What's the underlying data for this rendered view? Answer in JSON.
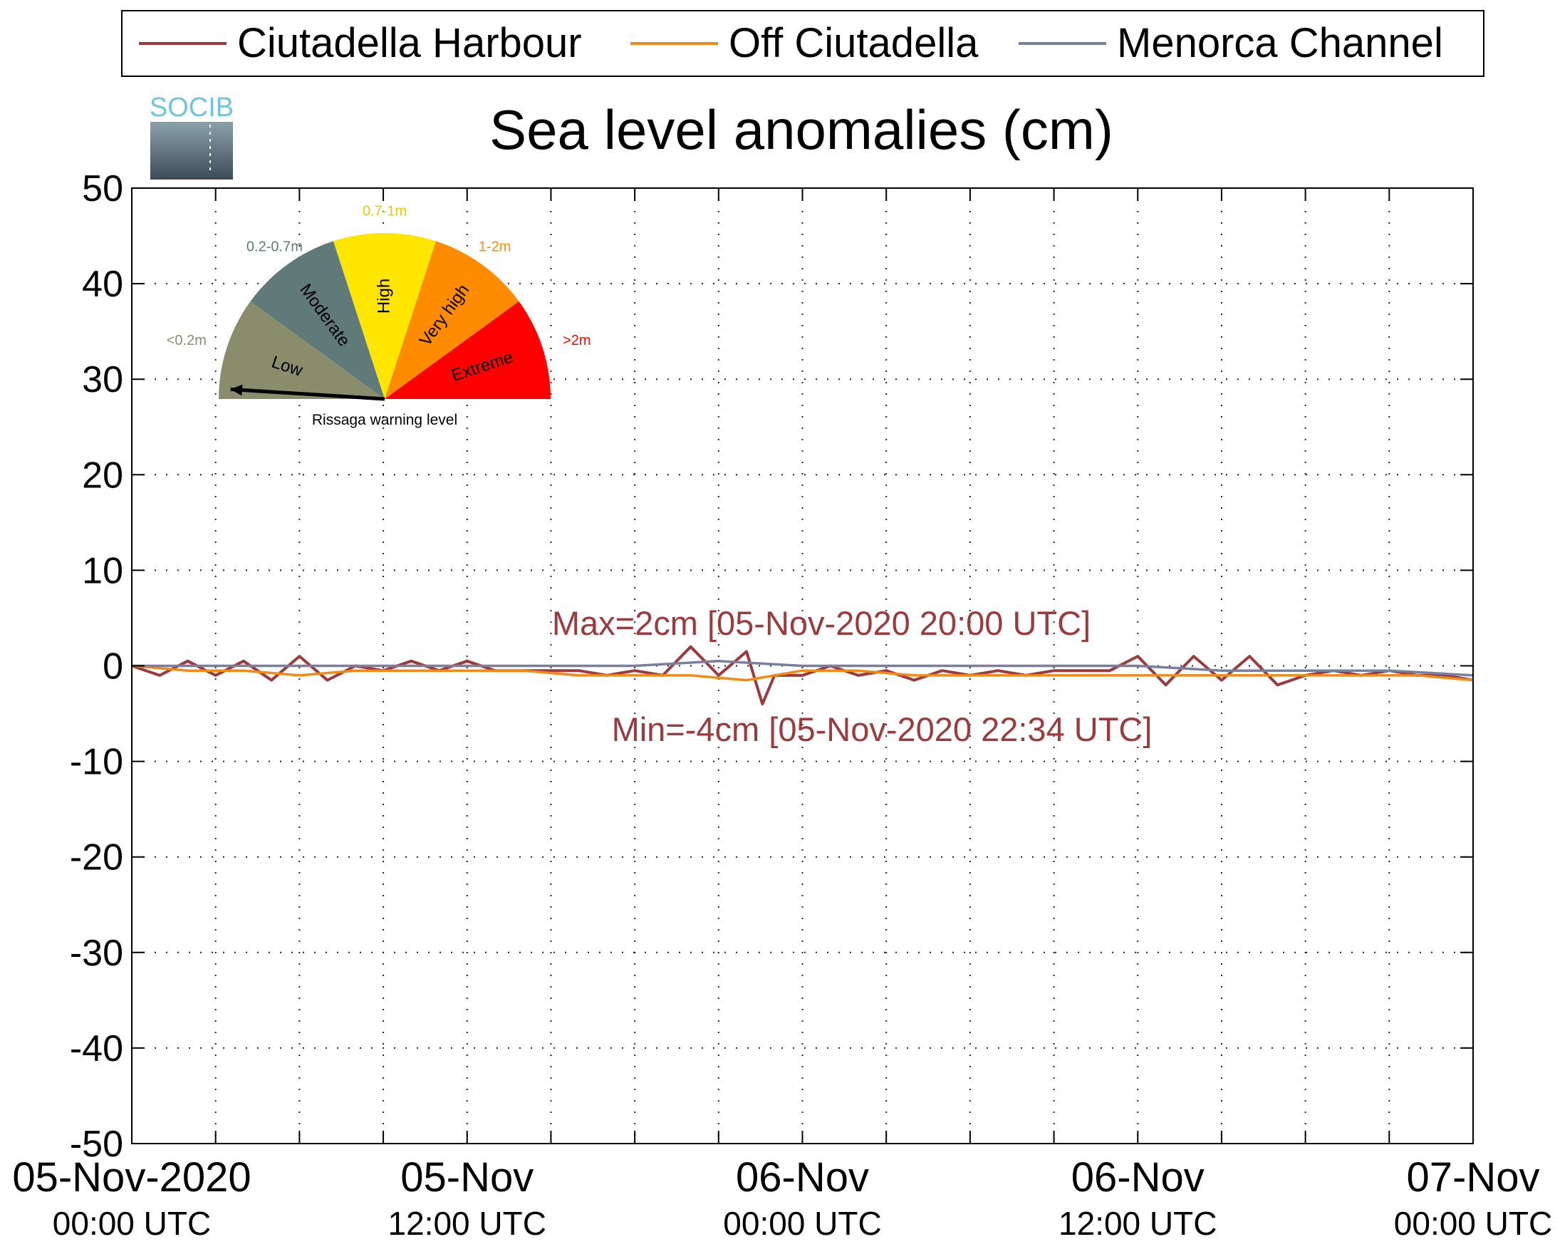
{
  "chart_data": {
    "type": "line",
    "title": "Sea level anomalies (cm)",
    "logo_text": "SOCIB",
    "xlabel": "",
    "ylabel": "",
    "grid": true,
    "legend_placement": "top",
    "ylim": [
      -50,
      50
    ],
    "yticks": [
      50,
      40,
      30,
      20,
      10,
      0,
      -10,
      -20,
      -30,
      -40,
      -50
    ],
    "xlim": [
      "2020-11-05 00:00",
      "2020-11-07 00:00"
    ],
    "xtick_labels": [
      {
        "date": "2020-11-05 00:00",
        "line1": "05-Nov-2020",
        "line2": "00:00 UTC"
      },
      {
        "date": "2020-11-05 12:00",
        "line1": "05-Nov",
        "line2": "12:00 UTC"
      },
      {
        "date": "2020-11-06 00:00",
        "line1": "06-Nov",
        "line2": "00:00 UTC"
      },
      {
        "date": "2020-11-06 12:00",
        "line1": "06-Nov",
        "line2": "12:00 UTC"
      },
      {
        "date": "2020-11-07 00:00",
        "line1": "07-Nov",
        "line2": "00:00 UTC"
      }
    ],
    "minor_xtick_hours": 3,
    "series": [
      {
        "name": "Ciutadella Harbour",
        "color": "#9c3a3e",
        "x": [
          "2020-11-05 00:00",
          "2020-11-05 01:00",
          "2020-11-05 02:00",
          "2020-11-05 03:00",
          "2020-11-05 04:00",
          "2020-11-05 05:00",
          "2020-11-05 06:00",
          "2020-11-05 07:00",
          "2020-11-05 08:00",
          "2020-11-05 09:00",
          "2020-11-05 10:00",
          "2020-11-05 11:00",
          "2020-11-05 12:00",
          "2020-11-05 13:00",
          "2020-11-05 14:00",
          "2020-11-05 15:00",
          "2020-11-05 16:00",
          "2020-11-05 17:00",
          "2020-11-05 18:00",
          "2020-11-05 19:00",
          "2020-11-05 20:00",
          "2020-11-05 21:00",
          "2020-11-05 22:00",
          "2020-11-05 22:34",
          "2020-11-05 23:00",
          "2020-11-06 00:00",
          "2020-11-06 01:00",
          "2020-11-06 02:00",
          "2020-11-06 03:00",
          "2020-11-06 04:00",
          "2020-11-06 05:00",
          "2020-11-06 06:00",
          "2020-11-06 07:00",
          "2020-11-06 08:00",
          "2020-11-06 09:00",
          "2020-11-06 10:00",
          "2020-11-06 11:00",
          "2020-11-06 12:00",
          "2020-11-06 13:00",
          "2020-11-06 14:00",
          "2020-11-06 15:00",
          "2020-11-06 16:00",
          "2020-11-06 17:00",
          "2020-11-06 18:00",
          "2020-11-06 19:00",
          "2020-11-06 20:00",
          "2020-11-06 21:00",
          "2020-11-06 22:00",
          "2020-11-06 23:00",
          "2020-11-07 00:00"
        ],
        "values": [
          0,
          -1,
          0.5,
          -1,
          0.5,
          -1.5,
          1,
          -1.5,
          0,
          -0.5,
          0.5,
          -0.5,
          0.5,
          -0.5,
          -0.5,
          -0.5,
          -0.5,
          -1,
          -0.5,
          -1,
          2,
          -1,
          1.5,
          -4,
          -1,
          -1,
          0,
          -1,
          -0.5,
          -1.5,
          -0.5,
          -1,
          -0.5,
          -1,
          -0.5,
          -0.5,
          -0.5,
          1,
          -2,
          1,
          -1.5,
          1,
          -2,
          -1,
          -0.5,
          -1,
          -0.5,
          -1,
          -1,
          -1.5
        ]
      },
      {
        "name": "Off Ciutadella",
        "color": "#f08c16",
        "x": [
          "2020-11-05 00:00",
          "2020-11-05 02:00",
          "2020-11-05 04:00",
          "2020-11-05 06:00",
          "2020-11-05 08:00",
          "2020-11-05 10:00",
          "2020-11-05 12:00",
          "2020-11-05 14:00",
          "2020-11-05 16:00",
          "2020-11-05 18:00",
          "2020-11-05 20:00",
          "2020-11-05 22:00",
          "2020-11-06 00:00",
          "2020-11-06 02:00",
          "2020-11-06 04:00",
          "2020-11-06 06:00",
          "2020-11-06 08:00",
          "2020-11-06 10:00",
          "2020-11-06 12:00",
          "2020-11-06 14:00",
          "2020-11-06 16:00",
          "2020-11-06 18:00",
          "2020-11-06 20:00",
          "2020-11-06 22:00",
          "2020-11-07 00:00"
        ],
        "values": [
          0,
          -0.5,
          -0.5,
          -1,
          -0.5,
          -0.5,
          -0.5,
          -0.5,
          -1,
          -1,
          -1,
          -1.5,
          -0.5,
          -0.5,
          -1,
          -1,
          -1,
          -1,
          -1,
          -1,
          -1,
          -1,
          -1,
          -1,
          -1.5
        ]
      },
      {
        "name": "Menorca Channel",
        "color": "#7a7f9e",
        "x": [
          "2020-11-05 00:00",
          "2020-11-05 03:00",
          "2020-11-05 06:00",
          "2020-11-05 09:00",
          "2020-11-05 12:00",
          "2020-11-05 15:00",
          "2020-11-05 18:00",
          "2020-11-05 21:00",
          "2020-11-06 00:00",
          "2020-11-06 03:00",
          "2020-11-06 06:00",
          "2020-11-06 09:00",
          "2020-11-06 12:00",
          "2020-11-06 15:00",
          "2020-11-06 18:00",
          "2020-11-06 21:00",
          "2020-11-07 00:00"
        ],
        "values": [
          0,
          0,
          0,
          0,
          0,
          0,
          0,
          0.5,
          0,
          0,
          0,
          0,
          0,
          -0.5,
          -0.5,
          -0.5,
          -1
        ]
      }
    ],
    "annotations": [
      {
        "text": "Max=2cm [05-Nov-2020 20:00 UTC]",
        "color": "#9c3a3e"
      },
      {
        "text": "Min=-4cm [05-Nov-2020 22:34 UTC]",
        "color": "#9c3a3e"
      }
    ],
    "warning_gauge": {
      "caption": "Rissaga warning level",
      "current_level": "Low",
      "segments": [
        {
          "label": "Low",
          "range": "<0.2m",
          "color": "#8a8d6c"
        },
        {
          "label": "Moderate",
          "range": "0.2-0.7m",
          "color": "#5f7a78"
        },
        {
          "label": "High",
          "range": "0.7-1m",
          "color": "#ffe600"
        },
        {
          "label": "Very high",
          "range": "1-2m",
          "color": "#ff8c00"
        },
        {
          "label": "Extreme",
          "range": ">2m",
          "color": "#ff0000"
        }
      ]
    }
  }
}
